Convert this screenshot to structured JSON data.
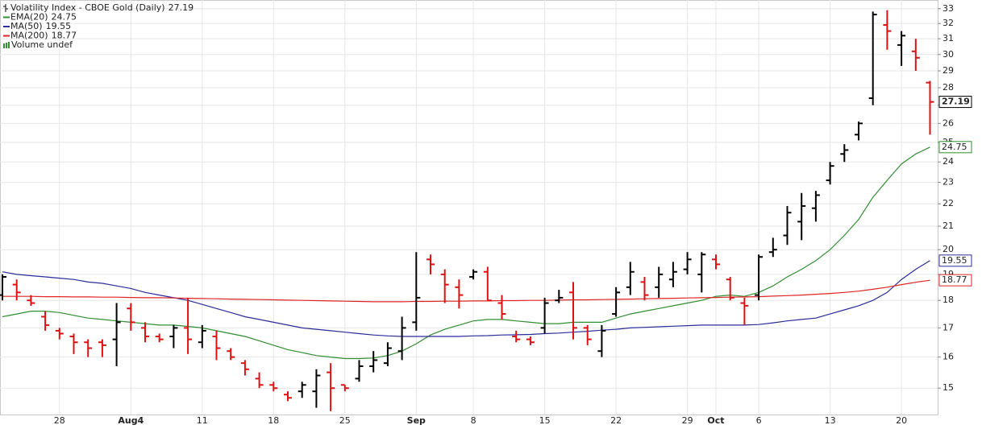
{
  "chart_data": {
    "type": "ohlc",
    "title": "Volatility Index - CBOE Gold (Daily)",
    "volume_label": "Volume undef",
    "log": true,
    "grid": true,
    "up_color": "#000000",
    "down_color": "#e01010",
    "ylim": [
      14.2,
      33.6
    ],
    "yticks": [
      15,
      16,
      17,
      18,
      19,
      20,
      21,
      22,
      23,
      24,
      25,
      26,
      27,
      28,
      29,
      30,
      31,
      32,
      33
    ],
    "categories": [
      null,
      null,
      null,
      null,
      "28",
      null,
      null,
      null,
      null,
      "Aug4",
      null,
      null,
      null,
      null,
      "11",
      null,
      null,
      null,
      null,
      "18",
      null,
      null,
      null,
      null,
      "25",
      null,
      null,
      null,
      null,
      "Sep",
      null,
      null,
      null,
      "8",
      null,
      null,
      null,
      null,
      "15",
      null,
      null,
      null,
      null,
      "22",
      null,
      null,
      null,
      null,
      "29",
      null,
      "Oct",
      null,
      null,
      "6",
      null,
      null,
      null,
      null,
      "13",
      null,
      null,
      null,
      null,
      "20",
      null,
      null
    ],
    "open": [
      18.2,
      18.6,
      18.0,
      17.4,
      16.9,
      16.7,
      16.5,
      16.5,
      16.6,
      17.7,
      17.0,
      16.7,
      16.7,
      17.0,
      16.5,
      16.7,
      16.2,
      15.8,
      15.3,
      15.1,
      14.8,
      14.9,
      14.9,
      15.5,
      15.1,
      15.3,
      15.7,
      15.8,
      16.2,
      17.2,
      19.6,
      19.0,
      18.5,
      18.9,
      19.1,
      17.9,
      16.7,
      16.6,
      17.0,
      18.0,
      18.3,
      17.0,
      16.2,
      17.5,
      18.5,
      18.7,
      18.5,
      18.8,
      19.2,
      19.0,
      19.6,
      18.8,
      17.9,
      18.2,
      19.9,
      20.6,
      21.2,
      21.8,
      23.1,
      24.4,
      25.4,
      27.4,
      31.9,
      30.6,
      30.2,
      28.3
    ],
    "high": [
      19.0,
      18.8,
      18.2,
      17.6,
      17.0,
      16.8,
      16.6,
      16.6,
      17.9,
      17.9,
      17.2,
      16.8,
      17.1,
      18.1,
      17.1,
      16.9,
      16.3,
      15.9,
      15.5,
      15.2,
      14.9,
      15.2,
      15.6,
      15.8,
      15.1,
      15.9,
      16.2,
      16.5,
      17.4,
      19.9,
      19.8,
      19.2,
      18.8,
      19.2,
      19.3,
      18.2,
      16.9,
      16.7,
      18.1,
      18.4,
      18.7,
      17.1,
      17.1,
      18.5,
      19.5,
      18.9,
      19.3,
      19.5,
      19.9,
      19.9,
      19.8,
      18.9,
      18.1,
      19.8,
      20.5,
      21.9,
      22.5,
      22.6,
      24.0,
      24.9,
      26.1,
      32.8,
      32.9,
      31.5,
      31.0,
      28.4
    ],
    "low": [
      18.0,
      18.0,
      17.8,
      16.9,
      16.6,
      16.1,
      16.0,
      16.0,
      15.7,
      16.9,
      16.5,
      16.5,
      16.3,
      16.1,
      16.3,
      15.9,
      15.9,
      15.4,
      15.0,
      14.9,
      14.6,
      14.7,
      14.4,
      14.3,
      14.9,
      15.2,
      15.5,
      15.7,
      15.9,
      16.9,
      19.0,
      17.9,
      17.7,
      18.8,
      18.0,
      17.3,
      16.5,
      16.4,
      16.8,
      17.9,
      16.6,
      16.4,
      16.0,
      17.4,
      18.2,
      18.0,
      18.1,
      18.5,
      19.0,
      18.3,
      19.2,
      18.0,
      17.1,
      18.0,
      19.7,
      20.2,
      20.4,
      21.2,
      22.9,
      24.0,
      25.1,
      27.0,
      30.3,
      29.3,
      29.0,
      25.4
    ],
    "close": [
      18.9,
      18.3,
      17.9,
      17.1,
      16.8,
      16.5,
      16.3,
      16.4,
      17.2,
      17.2,
      16.7,
      16.6,
      17.0,
      16.6,
      16.9,
      16.3,
      16.0,
      15.6,
      15.1,
      15.0,
      14.7,
      15.1,
      15.4,
      15.0,
      15.0,
      15.7,
      15.9,
      16.3,
      17.0,
      18.1,
      19.4,
      18.6,
      18.2,
      19.1,
      18.0,
      17.5,
      16.6,
      16.5,
      17.9,
      18.1,
      17.0,
      16.6,
      16.9,
      18.3,
      19.1,
      18.2,
      19.0,
      19.1,
      19.6,
      19.8,
      19.4,
      18.1,
      17.8,
      19.7,
      20.0,
      21.6,
      21.9,
      22.4,
      23.8,
      24.6,
      26.0,
      32.6,
      31.5,
      31.2,
      29.8,
      27.19
    ],
    "series": [
      {
        "name": "EMA(20)",
        "color": "#2f8f2f",
        "values": [
          17.4,
          17.5,
          17.6,
          17.6,
          17.55,
          17.45,
          17.35,
          17.3,
          17.25,
          17.2,
          17.15,
          17.1,
          17.1,
          17.05,
          17.0,
          16.9,
          16.8,
          16.7,
          16.55,
          16.4,
          16.25,
          16.15,
          16.05,
          16.0,
          15.95,
          15.95,
          15.97,
          16.05,
          16.2,
          16.45,
          16.75,
          16.95,
          17.1,
          17.25,
          17.3,
          17.3,
          17.25,
          17.2,
          17.15,
          17.15,
          17.2,
          17.2,
          17.2,
          17.35,
          17.5,
          17.6,
          17.7,
          17.8,
          17.9,
          18.0,
          18.15,
          18.2,
          18.15,
          18.3,
          18.55,
          18.9,
          19.2,
          19.55,
          20.0,
          20.6,
          21.3,
          22.3,
          23.1,
          23.9,
          24.4,
          24.75
        ]
      },
      {
        "name": "MA(50)",
        "color": "#2b2b9b",
        "values": [
          19.1,
          19.0,
          18.95,
          18.9,
          18.85,
          18.8,
          18.7,
          18.65,
          18.55,
          18.45,
          18.3,
          18.2,
          18.1,
          18.0,
          17.85,
          17.7,
          17.55,
          17.4,
          17.3,
          17.2,
          17.1,
          17.0,
          16.95,
          16.9,
          16.85,
          16.8,
          16.75,
          16.72,
          16.7,
          16.7,
          16.7,
          16.7,
          16.7,
          16.72,
          16.73,
          16.75,
          16.76,
          16.77,
          16.8,
          16.82,
          16.85,
          16.88,
          16.92,
          16.95,
          17.0,
          17.02,
          17.04,
          17.06,
          17.08,
          17.1,
          17.1,
          17.1,
          17.1,
          17.12,
          17.18,
          17.25,
          17.3,
          17.35,
          17.5,
          17.65,
          17.8,
          18.0,
          18.3,
          18.8,
          19.2,
          19.55
        ]
      },
      {
        "name": "MA(200)",
        "color": "#e02424",
        "values": [
          18.15,
          18.15,
          18.15,
          18.14,
          18.14,
          18.13,
          18.13,
          18.12,
          18.12,
          18.11,
          18.1,
          18.1,
          18.09,
          18.08,
          18.07,
          18.06,
          18.05,
          18.04,
          18.03,
          18.02,
          18.01,
          18.0,
          17.99,
          17.98,
          17.97,
          17.96,
          17.95,
          17.95,
          17.95,
          17.96,
          17.96,
          17.97,
          17.97,
          17.98,
          17.98,
          17.99,
          17.99,
          18.0,
          18.0,
          18.01,
          18.02,
          18.02,
          18.03,
          18.04,
          18.05,
          18.06,
          18.07,
          18.08,
          18.09,
          18.1,
          18.11,
          18.12,
          18.13,
          18.14,
          18.16,
          18.18,
          18.2,
          18.23,
          18.26,
          18.3,
          18.35,
          18.42,
          18.5,
          18.6,
          18.69,
          18.77
        ]
      }
    ]
  }
}
